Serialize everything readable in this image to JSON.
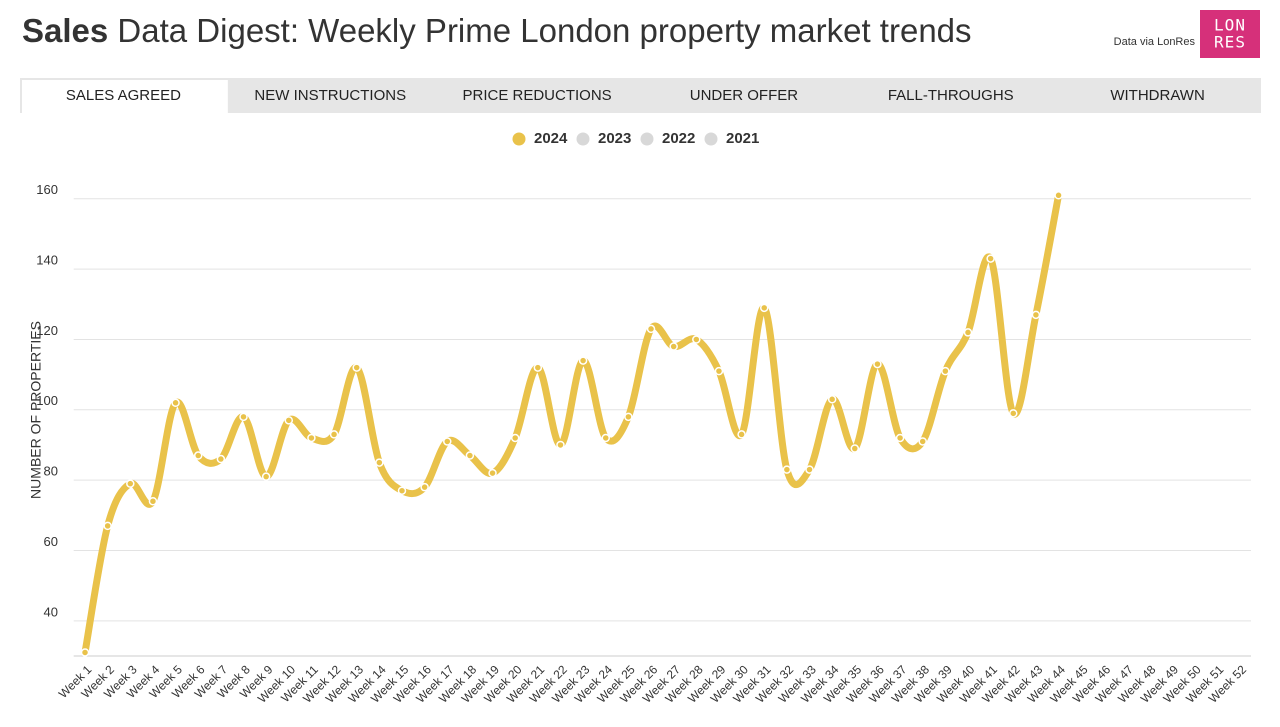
{
  "header": {
    "title_bold": "Sales",
    "title_rest": "Data Digest: Weekly Prime London property market trends",
    "source": "Data via LonRes",
    "logo": [
      "LON",
      "RES"
    ]
  },
  "tabs": {
    "items": [
      "SALES AGREED",
      "NEW INSTRUCTIONS",
      "PRICE REDUCTIONS",
      "UNDER OFFER",
      "FALL-THROUGHS",
      "WITHDRAWN"
    ],
    "active": 0
  },
  "chart_data": {
    "type": "line",
    "y_label": "NUMBER OF PROPERTIES",
    "categories": [
      "Week 1",
      "Week 2",
      "Week 3",
      "Week 4",
      "Week 5",
      "Week 6",
      "Week 7",
      "Week 8",
      "Week 9",
      "Week 10",
      "Week 11",
      "Week 12",
      "Week 13",
      "Week 14",
      "Week 15",
      "Week 16",
      "Week 17",
      "Week 18",
      "Week 19",
      "Week 20",
      "Week 21",
      "Week 22",
      "Week 23",
      "Week 24",
      "Week 25",
      "Week 26",
      "Week 27",
      "Week 28",
      "Week 29",
      "Week 30",
      "Week 31",
      "Week 32",
      "Week 33",
      "Week 34",
      "Week 35",
      "Week 36",
      "Week 37",
      "Week 38",
      "Week 39",
      "Week 40",
      "Week 41",
      "Week 42",
      "Week 43",
      "Week 44",
      "Week 45",
      "Week 46",
      "Week 47",
      "Week 48",
      "Week 49",
      "Week 50",
      "Week 51",
      "Week 52"
    ],
    "series": [
      {
        "name": "2024",
        "color": "#e9c24a",
        "visible": true,
        "values": [
          31,
          67,
          79,
          74,
          102,
          87,
          86,
          98,
          81,
          97,
          92,
          93,
          112,
          85,
          77,
          78,
          91,
          87,
          82,
          92,
          112,
          90,
          114,
          92,
          98,
          123,
          118,
          120,
          111,
          93,
          129,
          83,
          83,
          103,
          89,
          113,
          92,
          91,
          111,
          122,
          143,
          99,
          127,
          161,
          null,
          null,
          null,
          null,
          null,
          null,
          null,
          null
        ]
      },
      {
        "name": "2023",
        "color": "#d8d8d8",
        "visible": false
      },
      {
        "name": "2022",
        "color": "#d8d8d8",
        "visible": false
      },
      {
        "name": "2021",
        "color": "#d8d8d8",
        "visible": false
      }
    ],
    "ylim": [
      30,
      165
    ],
    "yticks": [
      40,
      60,
      80,
      100,
      120,
      140,
      160
    ],
    "grid": true
  }
}
